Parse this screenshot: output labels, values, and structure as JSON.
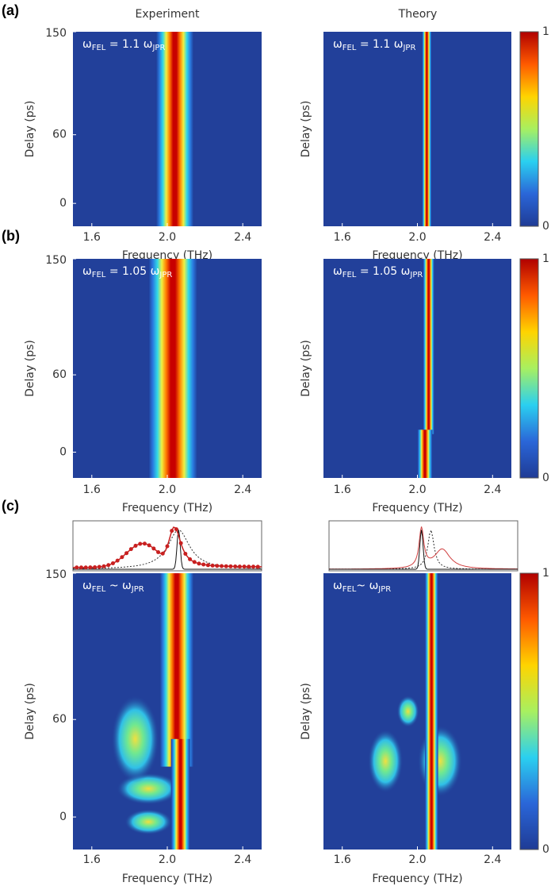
{
  "panel_labels": [
    "(a)",
    "(b)",
    "(c)"
  ],
  "column_titles": [
    "Experiment",
    "Theory"
  ],
  "chart_data": [
    {
      "type": "heatmap",
      "annotation": [
        "ω",
        "FEL",
        " = 1.1 ω",
        "JPR"
      ],
      "xlabel": "Frequency (THz)",
      "ylabel": "Delay (ps)",
      "xlim": [
        1.5,
        2.5
      ],
      "xticks": [
        1.6,
        {
          "value": 2,
          "label": "2.0"
        },
        2.4
      ],
      "ylim": [
        -20,
        150
      ],
      "yticks": [
        0,
        60,
        150
      ]
    },
    {
      "type": "heatmap",
      "annotation": [
        "ω",
        "FEL",
        " = 1.1 ω",
        "JPR"
      ],
      "xlabel": "Frequency (THz)",
      "ylabel": "Delay (ps)",
      "xlim": [
        1.5,
        2.5
      ],
      "xticks": [
        1.6,
        {
          "value": 2,
          "label": "2.0"
        },
        2.4
      ],
      "ylim": [
        -20,
        150
      ],
      "colorbar": {
        "ticks": [
          0,
          1
        ],
        "colormap": [
          "#00008f",
          "#0050ff",
          "#00c0ff",
          "#60ff90",
          "#ffe000",
          "#ff4000",
          "#800000"
        ]
      }
    },
    {
      "type": "heatmap",
      "annotation": [
        "ω",
        "FEL",
        " = 1.05 ω",
        "JPR"
      ],
      "xlabel": "Frequency (THz)",
      "ylabel": "Delay (ps)",
      "xlim": [
        1.5,
        2.5
      ],
      "xticks": [
        1.6,
        {
          "value": 2,
          "label": "2.0"
        },
        2.4
      ],
      "ylim": [
        -20,
        150
      ],
      "yticks": [
        0,
        60,
        150
      ]
    },
    {
      "type": "heatmap",
      "annotation": [
        "ω",
        "FEL",
        " = 1.05 ω",
        "JPR"
      ],
      "xlabel": "Frequency (THz)",
      "ylabel": "Delay (ps)",
      "xlim": [
        1.5,
        2.5
      ],
      "xticks": [
        1.6,
        {
          "value": 2,
          "label": "2.0"
        },
        2.4
      ],
      "ylim": [
        -20,
        150
      ],
      "colorbar": {
        "ticks": [
          0,
          1
        ],
        "colormap": [
          "#00008f",
          "#0050ff",
          "#00c0ff",
          "#60ff90",
          "#ffe000",
          "#ff4000",
          "#800000"
        ]
      }
    },
    {
      "type": "heatmap",
      "annotation": [
        "ω",
        "FEL",
        " ~ ω",
        "JPR"
      ],
      "xlabel": "Frequency (THz)",
      "ylabel": "Delay (ps)",
      "xlim": [
        1.5,
        2.5
      ],
      "xticks": [
        1.6,
        {
          "value": 2,
          "label": "2.0"
        },
        2.4
      ],
      "ylim": [
        -20,
        150
      ],
      "yticks": [
        0,
        60,
        150
      ]
    },
    {
      "type": "heatmap",
      "annotation": [
        "ω",
        "FEL",
        "~ ω",
        "JPR"
      ],
      "xlabel": "Frequency (THz)",
      "ylabel": "Delay (ps)",
      "xlim": [
        1.5,
        2.5
      ],
      "xticks": [
        1.6,
        {
          "value": 2,
          "label": "2.0"
        },
        2.4
      ],
      "ylim": [
        -20,
        150
      ],
      "colorbar": {
        "ticks": [
          0,
          1
        ],
        "colormap": [
          "#00008f",
          "#0050ff",
          "#00c0ff",
          "#60ff90",
          "#ffe000",
          "#ff4000",
          "#800000"
        ]
      }
    }
  ]
}
